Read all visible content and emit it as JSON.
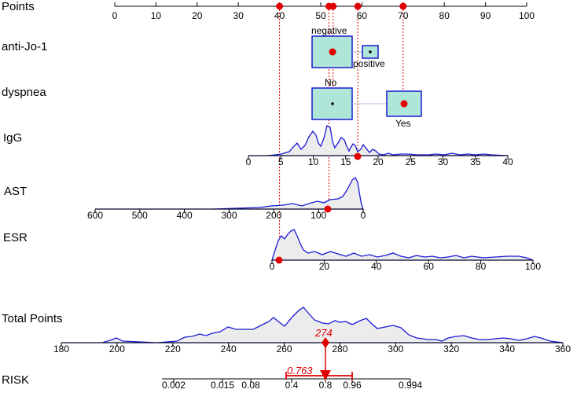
{
  "chart_data": {
    "type": "nomogram",
    "variables": [
      {
        "label": "Points",
        "ticks": [
          "0",
          "10",
          "20",
          "30",
          "40",
          "50",
          "60",
          "70",
          "80",
          "90",
          "100"
        ],
        "selected_points": [
          40,
          52,
          53,
          59,
          70
        ]
      },
      {
        "label": "anti-Jo-1",
        "categories": [
          {
            "name": "negative",
            "points": 53,
            "selected": true
          },
          {
            "name": "positive",
            "points": 62,
            "selected": false
          }
        ]
      },
      {
        "label": "dyspnea",
        "categories": [
          {
            "name": "No",
            "points": 53,
            "selected": false
          },
          {
            "name": "Yes",
            "points": 70,
            "selected": true
          }
        ]
      },
      {
        "label": "IgG",
        "ticks": [
          "0",
          "5",
          "10",
          "15",
          "20",
          "25",
          "30",
          "35",
          "40"
        ],
        "range": [
          0,
          40
        ],
        "selected_value": 17,
        "selected_points": 59
      },
      {
        "label": "AST",
        "ticks": [
          "600",
          "500",
          "400",
          "300",
          "200",
          "100",
          "0"
        ],
        "range": [
          600,
          0
        ],
        "selected_value": 85,
        "selected_points": 52
      },
      {
        "label": "ESR",
        "ticks": [
          "0",
          "20",
          "40",
          "60",
          "80",
          "100"
        ],
        "range": [
          0,
          100
        ],
        "selected_value": 3,
        "selected_points": 40
      },
      {
        "label": "Total Points",
        "ticks": [
          "180",
          "200",
          "220",
          "240",
          "260",
          "280",
          "300",
          "320",
          "340",
          "360"
        ],
        "range": [
          180,
          360
        ],
        "selected_value": "274"
      },
      {
        "label": "RISK",
        "ticks": [
          "0.002",
          "0.015",
          "0.08",
          "0.4",
          "0.8",
          "0.96",
          "0.994"
        ],
        "selected_value": "0.763"
      }
    ]
  }
}
